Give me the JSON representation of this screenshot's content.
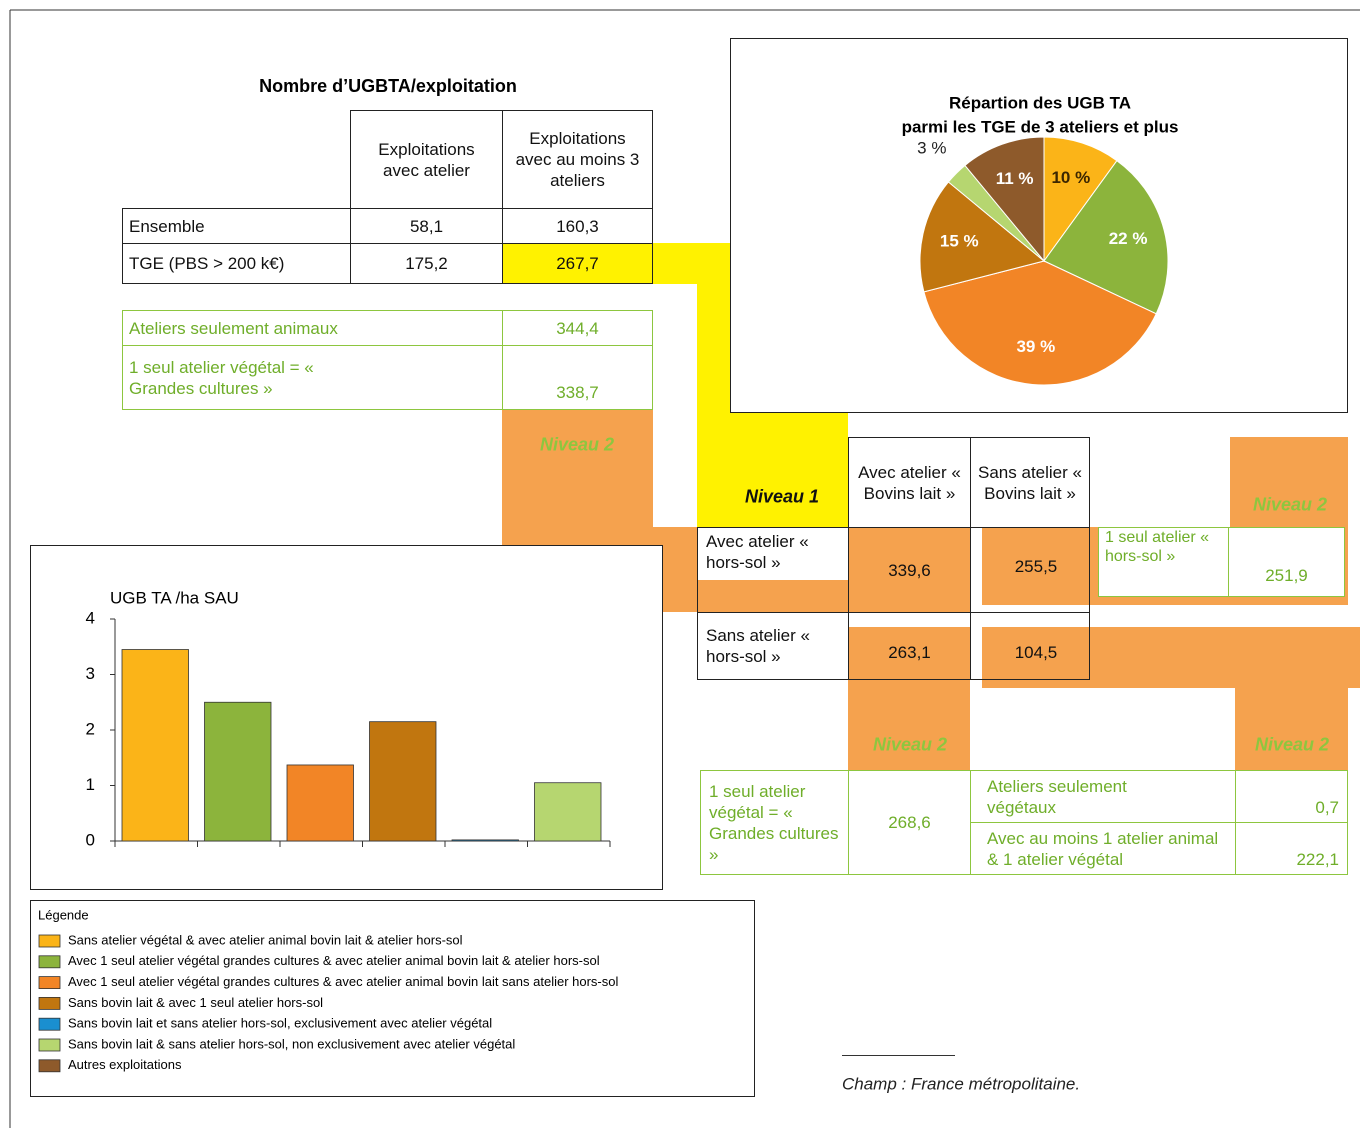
{
  "tables": {
    "title": "Nombre d’UGBTA/exploitation",
    "top": {
      "headers": [
        "Exploitations avec atelier",
        "Exploitations avec au moins 3 ateliers"
      ],
      "rows": [
        [
          "Ensemble",
          "58,1",
          "160,3"
        ],
        [
          "TGE (PBS > 200 k€)",
          "175,2",
          "267,7"
        ]
      ]
    },
    "green_top": {
      "level": "Niveau 2",
      "rows": [
        [
          "Ateliers seulement animaux",
          "344,4"
        ],
        [
          "1 seul atelier végétal = « Grandes cultures »",
          "338,7"
        ]
      ]
    },
    "matrix": {
      "level": "Niveau 1",
      "headers": [
        "Avec atelier « Bovins lait »",
        "Sans atelier « Bovins lait »"
      ],
      "rows": [
        [
          "Avec atelier « hors-sol »",
          "339,6",
          "255,5"
        ],
        [
          "Sans atelier « hors-sol »",
          "263,1",
          "104,5"
        ]
      ]
    },
    "hors_sol": {
      "level": "Niveau 2",
      "rows": [
        [
          "1 seul atelier « hors-sol »",
          "251,9"
        ]
      ]
    },
    "grandes_cultures": {
      "level": "Niveau 2",
      "rows": [
        [
          "1 seul atelier végétal = « Grandes cultures »",
          "268,6"
        ]
      ]
    },
    "vegetal": {
      "level": "Niveau 2",
      "rows": [
        [
          "Ateliers seulement végétaux",
          "0,7"
        ],
        [
          "Avec au moins 1 atelier animal & 1 atelier végétal",
          "222,1"
        ]
      ]
    }
  },
  "chart_data": [
    {
      "type": "pie",
      "title": [
        "Répartion des UGB TA",
        "parmi les TGE de 3 ateliers et plus"
      ],
      "values": [
        10,
        22,
        39,
        15,
        3,
        11
      ],
      "value_labels": [
        "10 %",
        "22 %",
        "39 %",
        "15 %",
        "3 %",
        "11 %"
      ],
      "colors": [
        "#fbb418",
        "#8cb43c",
        "#f28526",
        "#c1760f",
        "#b6d670",
        "#8e5a2b"
      ]
    },
    {
      "type": "bar",
      "title": "UGB TA /ha SAU",
      "categories": [
        null,
        null,
        null,
        null,
        null,
        null
      ],
      "values": [
        3.45,
        2.5,
        1.37,
        2.15,
        0.02,
        1.05
      ],
      "colors": [
        "#fbb418",
        "#8cb43c",
        "#f28526",
        "#c1760f",
        "#1a8fd0",
        "#b6d670"
      ],
      "ylim": [
        0,
        4
      ],
      "yticks": [
        0,
        1,
        2,
        3,
        4
      ]
    }
  ],
  "legend": {
    "title": "Légende",
    "items": [
      {
        "label": "Sans atelier végétal & avec atelier animal bovin lait & atelier hors-sol",
        "color": "#fbb418"
      },
      {
        "label": "Avec 1 seul atelier végétal grandes cultures & avec atelier animal bovin lait & atelier hors-sol",
        "color": "#8cb43c"
      },
      {
        "label": "Avec 1 seul atelier végétal grandes cultures & avec atelier animal bovin lait sans atelier hors-sol",
        "color": "#f28526"
      },
      {
        "label": "Sans bovin lait & avec 1 seul atelier hors-sol",
        "color": "#c1760f"
      },
      {
        "label": "Sans bovin lait et sans atelier hors-sol, exclusivement avec atelier végétal",
        "color": "#1a8fd0"
      },
      {
        "label": "Sans bovin lait & sans atelier hors-sol, non exclusivement avec atelier végétal",
        "color": "#b6d670"
      },
      {
        "label": "Autres exploitations",
        "color": "#8e5a2b"
      }
    ]
  },
  "source": "Champ : France métropolitaine."
}
